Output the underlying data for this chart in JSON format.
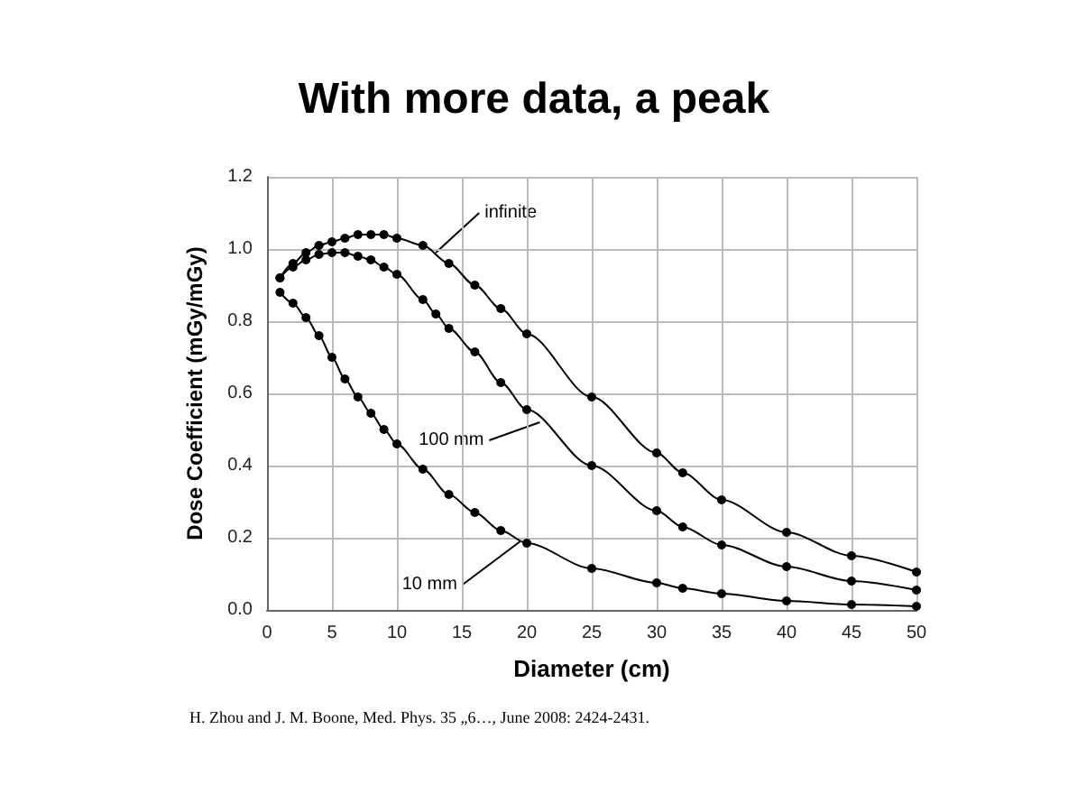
{
  "chart_data": {
    "type": "line",
    "title": "With more data, a peak",
    "xlabel": "Diameter (cm)",
    "ylabel": "Dose Coefficient (mGy/mGy)",
    "series": [
      {
        "color": "#000000",
        "x": [
          1,
          2,
          3,
          4,
          5,
          6,
          7,
          8,
          9,
          10,
          12,
          14,
          16,
          18,
          20,
          25,
          30,
          32,
          35,
          40,
          45,
          50
        ],
        "values": [
          0.92,
          0.96,
          0.99,
          1.01,
          1.02,
          1.03,
          1.04,
          1.04,
          1.04,
          1.03,
          1.01,
          0.96,
          0.9,
          0.835,
          0.765,
          0.59,
          0.435,
          0.38,
          0.305,
          0.215,
          0.15,
          0.105
        ]
      },
      {
        "color": "#000000",
        "x": [
          1,
          2,
          3,
          4,
          5,
          6,
          7,
          8,
          9,
          10,
          12,
          13,
          14,
          16,
          18,
          20,
          25,
          30,
          32,
          35,
          40,
          45,
          50
        ],
        "values": [
          0.92,
          0.95,
          0.97,
          0.985,
          0.99,
          0.99,
          0.98,
          0.97,
          0.95,
          0.93,
          0.86,
          0.82,
          0.78,
          0.715,
          0.63,
          0.555,
          0.4,
          0.275,
          0.23,
          0.18,
          0.12,
          0.08,
          0.055
        ]
      },
      {
        "color": "#000000",
        "x": [
          1,
          2,
          3,
          4,
          5,
          6,
          7,
          8,
          9,
          10,
          12,
          14,
          16,
          18,
          20,
          25,
          30,
          32,
          35,
          40,
          45,
          50
        ],
        "values": [
          0.88,
          0.85,
          0.81,
          0.76,
          0.7,
          0.64,
          0.59,
          0.545,
          0.5,
          0.46,
          0.39,
          0.32,
          0.27,
          0.22,
          0.185,
          0.115,
          0.075,
          0.06,
          0.045,
          0.025,
          0.015,
          0.01
        ]
      }
    ],
    "annotations": [
      {
        "text": "infinite",
        "x": 13,
        "y": 0.99
      },
      {
        "text": "100 mm",
        "x": 21,
        "y": 0.52
      },
      {
        "text": "10 mm",
        "x": 19.5,
        "y": 0.19
      },
      "H. Zhou and J. M. Boone, Med. Phys. 35 „6…, June 2008: 2424-2431."
    ],
    "xlim": [
      0,
      50
    ],
    "xticks": [
      0,
      5,
      10,
      15,
      20,
      25,
      30,
      35,
      40,
      45,
      50
    ],
    "ylim": [
      0,
      1.2
    ],
    "yticks": [
      {
        "value": 0,
        "label": "0.0"
      },
      {
        "value": 0.2,
        "label": "0.2"
      },
      {
        "value": 0.4,
        "label": "0.4"
      },
      {
        "value": 0.6,
        "label": "0.6"
      },
      {
        "value": 0.8,
        "label": "0.8"
      },
      {
        "value": 1.0,
        "label": "1.0"
      },
      {
        "value": 1.2,
        "label": "1.2"
      }
    ],
    "grid": true,
    "marker": "circle",
    "line_style": "solid"
  }
}
